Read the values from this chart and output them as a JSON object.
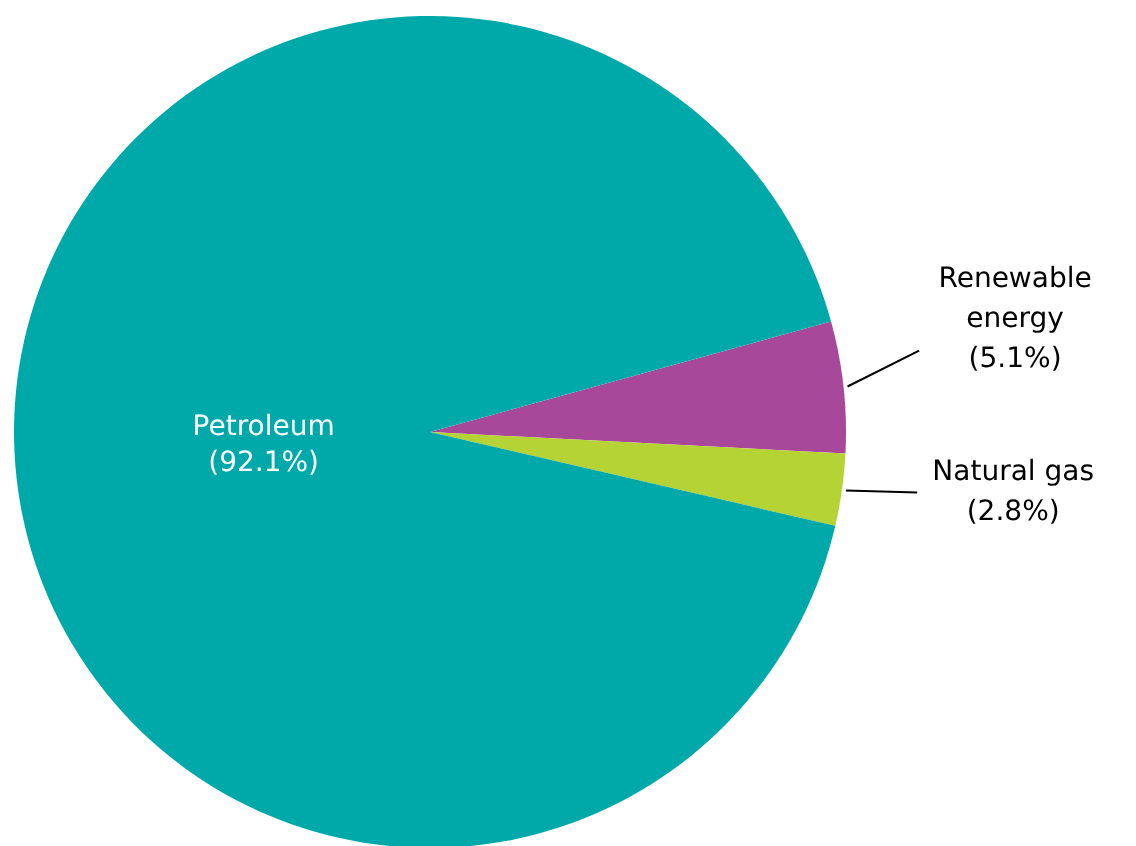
{
  "chart_data": {
    "type": "pie",
    "categories": [
      "Renewable energy",
      "Natural gas",
      "Petroleum"
    ],
    "values": [
      5.1,
      2.8,
      92.1
    ],
    "colors": [
      "#a8489b",
      "#b5d334",
      "#00a9a9"
    ],
    "value_labels": [
      "(5.1%)",
      "(2.8%)",
      "(92.1%)"
    ]
  }
}
